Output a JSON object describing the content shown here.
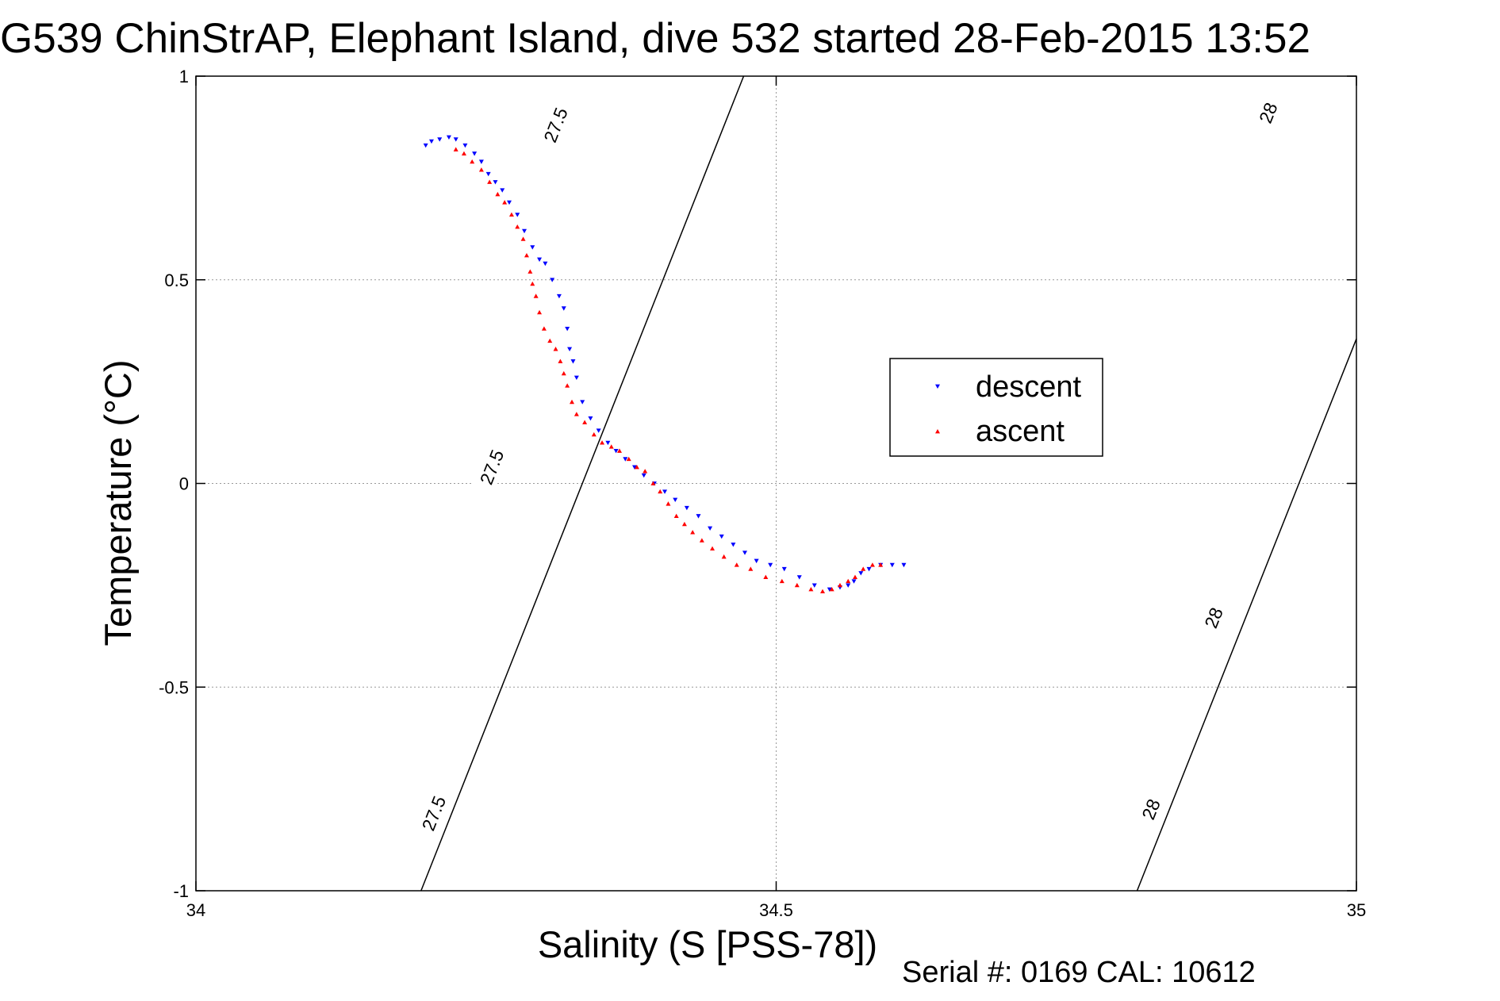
{
  "chart_data": {
    "type": "scatter",
    "title": "G539 ChinStrAP, Elephant Island, dive 532 started 28-Feb-2015 13:52",
    "xlabel": "Salinity (S [PSS-78])",
    "ylabel": "Temperature (°C)",
    "xlim": [
      34,
      35
    ],
    "ylim": [
      -1,
      1
    ],
    "x_ticks": [
      34,
      34.5,
      35
    ],
    "x_tick_labels": [
      "34",
      "34.5",
      "35"
    ],
    "y_ticks": [
      1,
      0.5,
      0,
      -0.5,
      -1
    ],
    "y_tick_labels": [
      "1",
      "0.5",
      "0",
      "-0.5",
      "-1"
    ],
    "grid": true,
    "legend_position": "right-center",
    "density_contours": [
      {
        "level_label": "27.5",
        "line": [
          [
            34.194,
            -1.0
          ],
          [
            34.472,
            1.0
          ]
        ],
        "label_positions": [
          [
            34.205,
            -0.81
          ],
          [
            34.255,
            0.04
          ],
          [
            34.31,
            0.88
          ]
        ]
      },
      {
        "level_label": "28",
        "line": [
          [
            34.811,
            -1.0
          ],
          [
            35.0,
            0.355
          ],
          [
            35.09,
            1.0
          ]
        ],
        "label_positions": [
          [
            34.823,
            -0.8
          ],
          [
            34.877,
            -0.33
          ],
          [
            34.924,
            0.91
          ]
        ]
      }
    ],
    "series": [
      {
        "name": "descent",
        "marker": "triangle-down",
        "color": "#0000ff",
        "points": [
          [
            34.198,
            0.83
          ],
          [
            34.203,
            0.84
          ],
          [
            34.21,
            0.845
          ],
          [
            34.218,
            0.85
          ],
          [
            34.224,
            0.845
          ],
          [
            34.232,
            0.83
          ],
          [
            34.24,
            0.81
          ],
          [
            34.246,
            0.79
          ],
          [
            34.252,
            0.76
          ],
          [
            34.258,
            0.74
          ],
          [
            34.264,
            0.72
          ],
          [
            34.27,
            0.69
          ],
          [
            34.277,
            0.66
          ],
          [
            34.283,
            0.62
          ],
          [
            34.29,
            0.58
          ],
          [
            34.296,
            0.55
          ],
          [
            34.301,
            0.54
          ],
          [
            34.307,
            0.5
          ],
          [
            34.313,
            0.46
          ],
          [
            34.317,
            0.43
          ],
          [
            34.32,
            0.38
          ],
          [
            34.322,
            0.33
          ],
          [
            34.325,
            0.3
          ],
          [
            34.328,
            0.26
          ],
          [
            34.333,
            0.2
          ],
          [
            34.34,
            0.16
          ],
          [
            34.347,
            0.13
          ],
          [
            34.355,
            0.1
          ],
          [
            34.362,
            0.08
          ],
          [
            34.37,
            0.06
          ],
          [
            34.378,
            0.04
          ],
          [
            34.386,
            0.02
          ],
          [
            34.395,
            0.0
          ],
          [
            34.404,
            -0.02
          ],
          [
            34.413,
            -0.04
          ],
          [
            34.423,
            -0.06
          ],
          [
            34.433,
            -0.08
          ],
          [
            34.443,
            -0.11
          ],
          [
            34.453,
            -0.13
          ],
          [
            34.463,
            -0.15
          ],
          [
            34.473,
            -0.17
          ],
          [
            34.483,
            -0.19
          ],
          [
            34.495,
            -0.2
          ],
          [
            34.507,
            -0.21
          ],
          [
            34.52,
            -0.23
          ],
          [
            34.533,
            -0.25
          ],
          [
            34.546,
            -0.26
          ],
          [
            34.555,
            -0.255
          ],
          [
            34.562,
            -0.25
          ],
          [
            34.567,
            -0.24
          ],
          [
            34.573,
            -0.22
          ],
          [
            34.58,
            -0.21
          ],
          [
            34.59,
            -0.2
          ],
          [
            34.6,
            -0.2
          ],
          [
            34.61,
            -0.2
          ]
        ]
      },
      {
        "name": "ascent",
        "marker": "triangle-up",
        "color": "#ff0000",
        "points": [
          [
            34.224,
            0.82
          ],
          [
            34.231,
            0.81
          ],
          [
            34.238,
            0.79
          ],
          [
            34.246,
            0.77
          ],
          [
            34.253,
            0.74
          ],
          [
            34.26,
            0.71
          ],
          [
            34.266,
            0.69
          ],
          [
            34.272,
            0.66
          ],
          [
            34.277,
            0.63
          ],
          [
            34.282,
            0.6
          ],
          [
            34.285,
            0.56
          ],
          [
            34.288,
            0.52
          ],
          [
            34.29,
            0.49
          ],
          [
            34.293,
            0.46
          ],
          [
            34.296,
            0.42
          ],
          [
            34.3,
            0.38
          ],
          [
            34.305,
            0.35
          ],
          [
            34.31,
            0.33
          ],
          [
            34.314,
            0.3
          ],
          [
            34.317,
            0.27
          ],
          [
            34.32,
            0.24
          ],
          [
            34.324,
            0.2
          ],
          [
            34.328,
            0.17
          ],
          [
            34.335,
            0.15
          ],
          [
            34.343,
            0.12
          ],
          [
            34.35,
            0.1
          ],
          [
            34.358,
            0.09
          ],
          [
            34.365,
            0.08
          ],
          [
            34.373,
            0.06
          ],
          [
            34.38,
            0.04
          ],
          [
            34.387,
            0.03
          ],
          [
            34.394,
            0.0
          ],
          [
            34.4,
            -0.02
          ],
          [
            34.407,
            -0.05
          ],
          [
            34.414,
            -0.08
          ],
          [
            34.421,
            -0.1
          ],
          [
            34.428,
            -0.12
          ],
          [
            34.436,
            -0.14
          ],
          [
            34.445,
            -0.16
          ],
          [
            34.455,
            -0.18
          ],
          [
            34.466,
            -0.2
          ],
          [
            34.478,
            -0.21
          ],
          [
            34.491,
            -0.23
          ],
          [
            34.505,
            -0.24
          ],
          [
            34.518,
            -0.25
          ],
          [
            34.53,
            -0.26
          ],
          [
            34.54,
            -0.265
          ],
          [
            34.548,
            -0.26
          ],
          [
            34.555,
            -0.25
          ],
          [
            34.562,
            -0.24
          ],
          [
            34.568,
            -0.23
          ],
          [
            34.575,
            -0.21
          ],
          [
            34.583,
            -0.2
          ],
          [
            34.59,
            -0.2
          ]
        ]
      }
    ],
    "annotation": "Serial #: 0169 CAL: 10612"
  }
}
